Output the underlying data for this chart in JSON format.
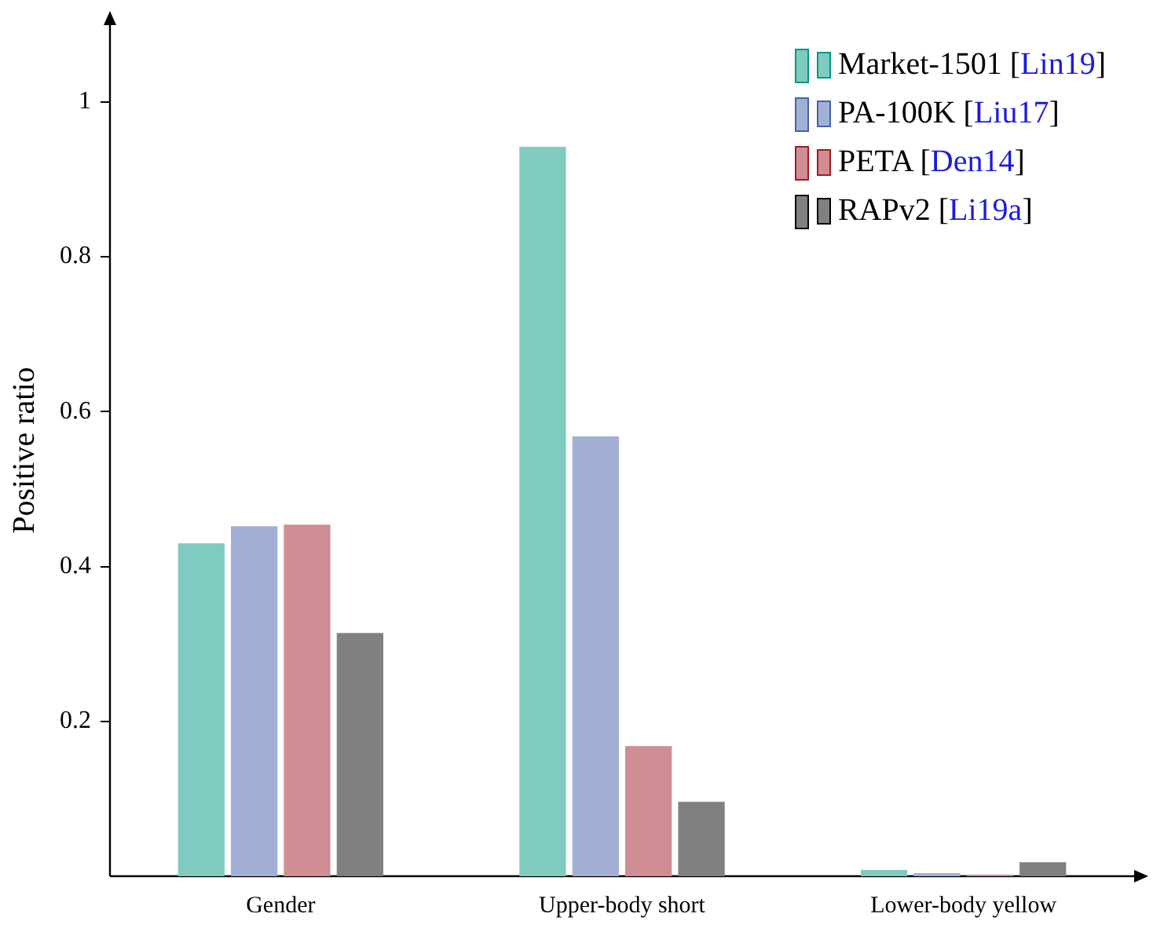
{
  "chart_data": {
    "type": "bar",
    "ylabel": "Positive ratio",
    "categories": [
      "Gender",
      "Upper-body short",
      "Lower-body yellow"
    ],
    "series": [
      {
        "name": "Market-1501 [Lin19]",
        "color": "#80cbc0",
        "values": [
          0.43,
          0.942,
          0.008
        ]
      },
      {
        "name": "PA-100K [Liu17]",
        "color": "#a3b0d6",
        "values": [
          0.452,
          0.568,
          0.004
        ]
      },
      {
        "name": "PETA [Den14]",
        "color": "#d08d93",
        "values": [
          0.454,
          0.168,
          0.002
        ]
      },
      {
        "name": "RAPv2 [Li19a]",
        "color": "#808080",
        "values": [
          0.314,
          0.096,
          0.018
        ]
      }
    ],
    "ylim": [
      0,
      1.1
    ],
    "yticks": [
      0.2,
      0.4,
      0.6,
      0.8,
      1
    ],
    "grid": false,
    "legend": "top right"
  }
}
